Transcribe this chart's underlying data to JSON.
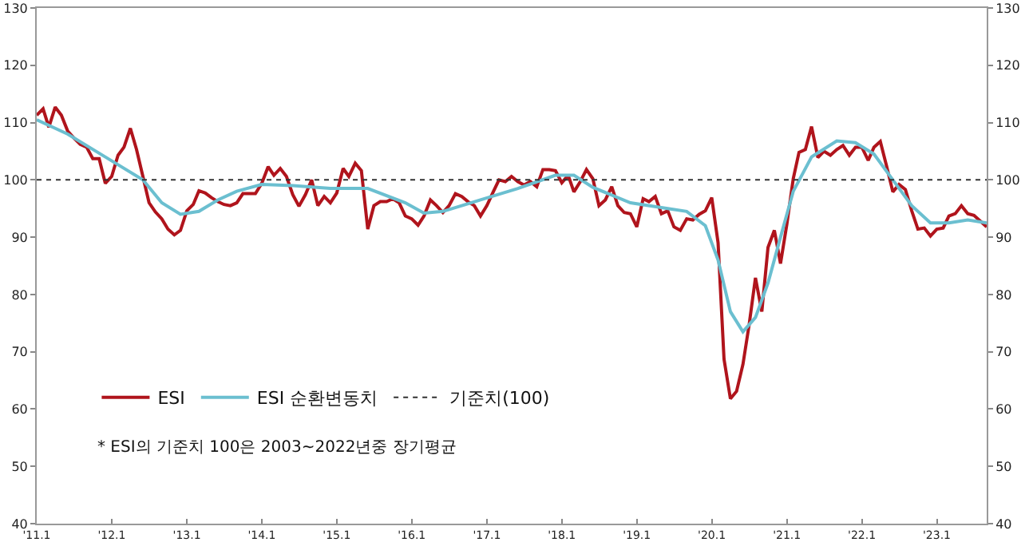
{
  "chart_data": {
    "type": "line",
    "xlim": [
      "2011-01",
      "2023-09"
    ],
    "xticks": [
      {
        "value": "2011-01",
        "label": "'11.1"
      },
      {
        "value": "2012-01",
        "label": "'12.1"
      },
      {
        "value": "2013-01",
        "label": "'13.1"
      },
      {
        "value": "2014-01",
        "label": "'14.1"
      },
      {
        "value": "2015-01",
        "label": "'15.1"
      },
      {
        "value": "2016-01",
        "label": "'16.1"
      },
      {
        "value": "2017-01",
        "label": "'17.1"
      },
      {
        "value": "2018-01",
        "label": "'18.1"
      },
      {
        "value": "2019-01",
        "label": "'19.1"
      },
      {
        "value": "2020-01",
        "label": "'20.1"
      },
      {
        "value": "2021-01",
        "label": "'21.1"
      },
      {
        "value": "2022-01",
        "label": "'22.1"
      },
      {
        "value": "2023-01",
        "label": "'23.1"
      }
    ],
    "ylim": [
      40,
      130
    ],
    "yticks": [
      40,
      50,
      60,
      70,
      80,
      90,
      100,
      110,
      120,
      130
    ],
    "y2lim": [
      40,
      130
    ],
    "y2ticks": [
      40,
      50,
      60,
      70,
      80,
      90,
      100,
      110,
      120,
      130
    ],
    "grid": false,
    "legend": "bottom left",
    "line_style": "solid",
    "marker": "none",
    "series": [
      {
        "name": "ESI",
        "color": "#b0141c",
        "x": [
          "2011-01",
          "2011-02",
          "2011-03",
          "2011-04",
          "2011-05",
          "2011-06",
          "2011-07",
          "2011-08",
          "2011-09",
          "2011-10",
          "2011-11",
          "2011-12",
          "2012-01",
          "2012-02",
          "2012-03",
          "2012-04",
          "2012-05",
          "2012-06",
          "2012-07",
          "2012-08",
          "2012-09",
          "2012-10",
          "2012-11",
          "2012-12",
          "2013-01",
          "2013-02",
          "2013-03",
          "2013-04",
          "2013-05",
          "2013-06",
          "2013-07",
          "2013-08",
          "2013-09",
          "2013-10",
          "2013-11",
          "2013-12",
          "2014-01",
          "2014-02",
          "2014-03",
          "2014-04",
          "2014-05",
          "2014-06",
          "2014-07",
          "2014-08",
          "2014-09",
          "2014-10",
          "2014-11",
          "2014-12",
          "2015-01",
          "2015-02",
          "2015-03",
          "2015-04",
          "2015-05",
          "2015-06",
          "2015-07",
          "2015-08",
          "2015-09",
          "2015-10",
          "2015-11",
          "2015-12",
          "2016-01",
          "2016-02",
          "2016-03",
          "2016-04",
          "2016-05",
          "2016-06",
          "2016-07",
          "2016-08",
          "2016-09",
          "2016-10",
          "2016-11",
          "2016-12",
          "2017-01",
          "2017-02",
          "2017-03",
          "2017-04",
          "2017-05",
          "2017-06",
          "2017-07",
          "2017-08",
          "2017-09",
          "2017-10",
          "2017-11",
          "2017-12",
          "2018-01",
          "2018-02",
          "2018-03",
          "2018-04",
          "2018-05",
          "2018-06",
          "2018-07",
          "2018-08",
          "2018-09",
          "2018-10",
          "2018-11",
          "2018-12",
          "2019-01",
          "2019-02",
          "2019-03",
          "2019-04",
          "2019-05",
          "2019-06",
          "2019-07",
          "2019-08",
          "2019-09",
          "2019-10",
          "2019-11",
          "2019-12",
          "2020-01",
          "2020-02",
          "2020-03",
          "2020-04",
          "2020-05",
          "2020-06",
          "2020-07",
          "2020-08",
          "2020-09",
          "2020-10",
          "2020-11",
          "2020-12",
          "2021-01",
          "2021-02",
          "2021-03",
          "2021-04",
          "2021-05",
          "2021-06",
          "2021-07",
          "2021-08",
          "2021-09",
          "2021-10",
          "2021-11",
          "2021-12",
          "2022-01",
          "2022-02",
          "2022-03",
          "2022-04",
          "2022-05",
          "2022-06",
          "2022-07",
          "2022-08",
          "2022-09",
          "2022-10",
          "2022-11",
          "2022-12",
          "2023-01",
          "2023-02",
          "2023-03",
          "2023-04",
          "2023-05",
          "2023-06",
          "2023-07",
          "2023-08",
          "2023-09"
        ],
        "values": [
          111.3,
          112.4,
          109.2,
          112.7,
          111.3,
          108.5,
          107.3,
          106.2,
          105.7,
          103.7,
          103.7,
          99.4,
          100.6,
          104.3,
          105.7,
          109,
          105.3,
          100.6,
          96,
          94.4,
          93.2,
          91.4,
          90.4,
          91.2,
          94.6,
          95.7,
          98.1,
          97.7,
          96.9,
          96.2,
          95.7,
          95.5,
          96,
          97.6,
          97.6,
          97.6,
          99.4,
          102.3,
          100.8,
          102,
          100.6,
          97.4,
          95.4,
          97.4,
          100,
          95.5,
          97.1,
          96,
          97.7,
          102,
          100.6,
          102.9,
          101.6,
          91.4,
          95.5,
          96.2,
          96.2,
          96.7,
          96,
          93.7,
          93.2,
          92.1,
          93.7,
          96.5,
          95.5,
          94.3,
          95.5,
          97.6,
          97.1,
          96.2,
          95.5,
          93.7,
          95.5,
          97.9,
          100,
          99.7,
          100.6,
          99.7,
          99.1,
          99.7,
          98.8,
          101.8,
          101.8,
          101.6,
          99.5,
          100.8,
          97.9,
          99.7,
          101.8,
          100.2,
          95.5,
          96.5,
          98.8,
          95.5,
          94.3,
          94.1,
          91.8,
          96.7,
          96.2,
          97.1,
          94.1,
          94.6,
          91.8,
          91.2,
          93.2,
          93,
          94,
          94.6,
          96.9,
          89,
          68.7,
          61.8,
          63.1,
          67.8,
          74.7,
          82.9,
          77,
          88.2,
          91.2,
          85.4,
          92.3,
          100.2,
          104.8,
          105.3,
          109.3,
          103.9,
          105,
          104.3,
          105.3,
          106,
          104.3,
          105.7,
          105.7,
          103.4,
          105.7,
          106.7,
          102.5,
          97.9,
          99.2,
          98.3,
          94.6,
          91.4,
          91.6,
          90.2,
          91.4,
          91.6,
          93.7,
          94.1,
          95.5,
          94.1,
          93.8,
          92.8,
          91.8
        ]
      },
      {
        "name": "ESI 순환변동치",
        "color": "#6bbfd0",
        "x": [
          "2011-01",
          "2011-06",
          "2011-12",
          "2012-06",
          "2012-09",
          "2012-12",
          "2013-03",
          "2013-06",
          "2013-09",
          "2014-01",
          "2014-06",
          "2014-12",
          "2015-06",
          "2015-12",
          "2016-03",
          "2016-06",
          "2016-12",
          "2017-06",
          "2017-12",
          "2018-03",
          "2018-06",
          "2018-12",
          "2019-06",
          "2019-09",
          "2019-12",
          "2020-02",
          "2020-04",
          "2020-06",
          "2020-08",
          "2020-10",
          "2020-12",
          "2021-02",
          "2021-05",
          "2021-09",
          "2021-12",
          "2022-03",
          "2022-06",
          "2022-09",
          "2022-12",
          "2023-03",
          "2023-06",
          "2023-09"
        ],
        "values": [
          110.5,
          108,
          104,
          100,
          96,
          94,
          94.5,
          96.5,
          98,
          99.2,
          99,
          98.5,
          98.5,
          96,
          94.2,
          94.5,
          96.5,
          98.5,
          100.8,
          100.8,
          98.7,
          96,
          95,
          94.5,
          92,
          86,
          77,
          73.5,
          76,
          82,
          90,
          98,
          104,
          106.8,
          106.5,
          104.5,
          100,
          95.5,
          92.5,
          92.5,
          93,
          92.5
        ]
      }
    ],
    "ref_lines": [
      {
        "axis": "y",
        "value": 100,
        "label": "기준치(100)",
        "color": "#333333",
        "line_style": "dotted"
      }
    ],
    "annotations": [
      "* ESI의 기준치 100은 2003~2022년중 장기평균"
    ]
  }
}
